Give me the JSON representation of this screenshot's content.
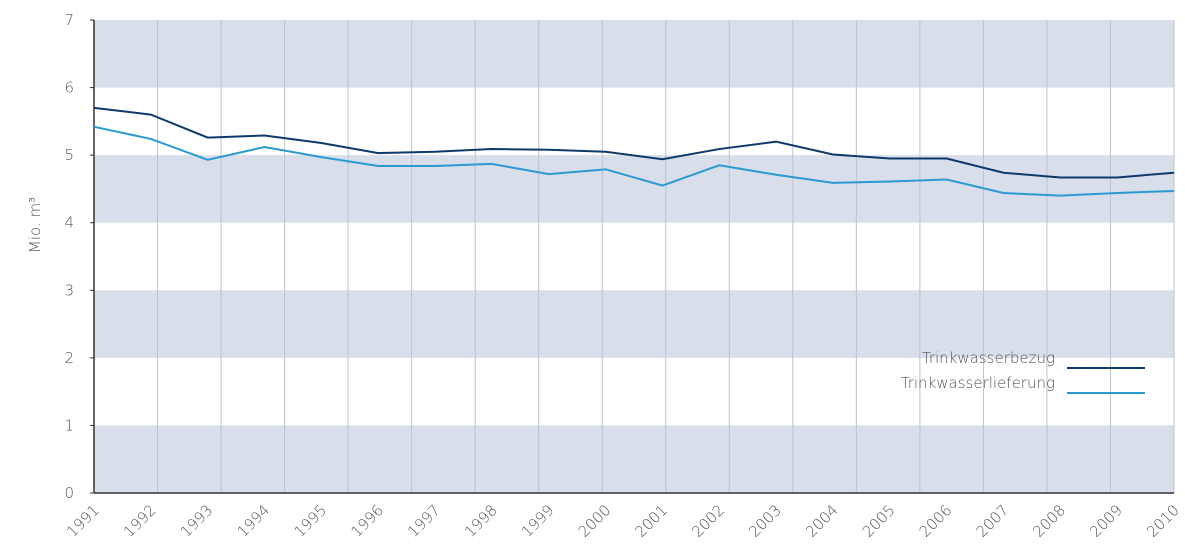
{
  "chart_data": {
    "type": "line",
    "ylabel": "Mio. m³",
    "categories": [
      "1991",
      "1992",
      "1993",
      "1994",
      "1995",
      "1996",
      "1997",
      "1998",
      "1999",
      "2000",
      "2001",
      "2002",
      "2003",
      "2004",
      "2005",
      "2006",
      "2007",
      "2008",
      "2009",
      "2010"
    ],
    "series": [
      {
        "name": "Trinkwasserbezug",
        "color": "#0d3a6b",
        "values": [
          5.7,
          5.6,
          5.26,
          5.29,
          5.18,
          5.03,
          5.05,
          5.09,
          5.08,
          5.05,
          4.94,
          5.09,
          5.2,
          5.01,
          4.95,
          4.95,
          4.74,
          4.67,
          4.67,
          4.74
        ]
      },
      {
        "name": "Trinkwasserlieferung",
        "color": "#2b9ad1",
        "values": [
          5.42,
          5.24,
          4.93,
          5.12,
          4.97,
          4.84,
          4.84,
          4.87,
          4.72,
          4.79,
          4.55,
          4.85,
          4.71,
          4.59,
          4.61,
          4.64,
          4.44,
          4.4,
          4.44,
          4.47
        ]
      }
    ],
    "ylim": [
      0,
      7
    ],
    "yticks": [
      0,
      1,
      2,
      3,
      4,
      5,
      6,
      7
    ],
    "grid": true,
    "legend": "lower right"
  }
}
